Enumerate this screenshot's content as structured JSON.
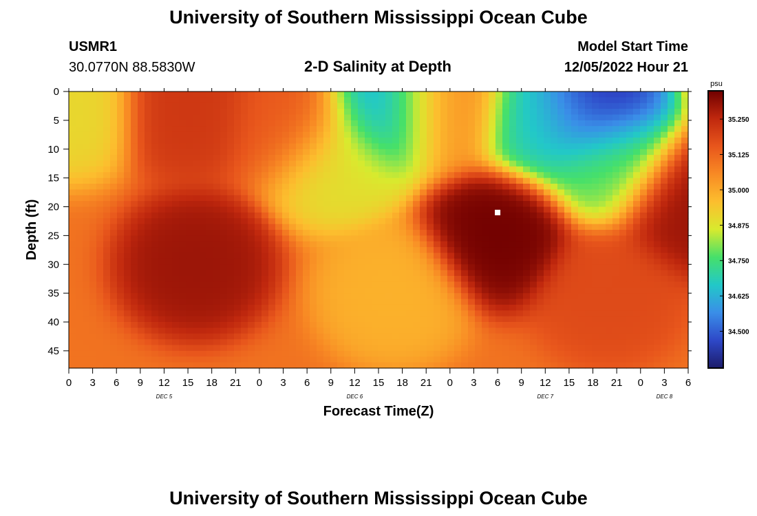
{
  "header": {
    "title": "University of Southern Mississippi Ocean Cube",
    "station_id": "USMR1",
    "station_coords": "30.0770N  88.5830W",
    "plot_title": "2-D Salinity at Depth",
    "model_start_label": "Model Start Time",
    "model_start_value": "12/05/2022 Hour 21",
    "footer_title": "University of Southern Mississippi Ocean Cube"
  },
  "colorbar": {
    "unit": "psu",
    "min": 34.37,
    "max": 35.35,
    "ticks": [
      "35.250",
      "35.125",
      "35.000",
      "34.875",
      "34.750",
      "34.625",
      "34.500"
    ],
    "tick_values": [
      35.25,
      35.125,
      35.0,
      34.875,
      34.75,
      34.625,
      34.5
    ],
    "colors": [
      "#1c1c6a",
      "#2e48c8",
      "#3a8ee8",
      "#22c8c8",
      "#46e06a",
      "#d8ea2e",
      "#fcbe2e",
      "#f88a24",
      "#e8561c",
      "#c0280e",
      "#700000"
    ]
  },
  "chart_data": {
    "type": "heatmap",
    "title": "2-D Salinity at Depth",
    "xlabel": "Forecast Time(Z)",
    "ylabel": "Depth (ft)",
    "ylim": [
      0,
      48
    ],
    "xlim_hours": [
      0,
      78
    ],
    "x_tick_labels": [
      "0",
      "3",
      "6",
      "9",
      "12",
      "15",
      "18",
      "21",
      "0",
      "3",
      "6",
      "9",
      "12",
      "15",
      "18",
      "21",
      "0",
      "3",
      "6",
      "9",
      "12",
      "15",
      "18",
      "21",
      "0",
      "3",
      "6"
    ],
    "y_tick_labels": [
      "0",
      "5",
      "10",
      "15",
      "20",
      "25",
      "30",
      "35",
      "40",
      "45"
    ],
    "y_tick_values": [
      0,
      5,
      10,
      15,
      20,
      25,
      30,
      35,
      40,
      45
    ],
    "day_labels": [
      {
        "label": "DEC 5",
        "hour": 12
      },
      {
        "label": "DEC 6",
        "hour": 36
      },
      {
        "label": "DEC 7",
        "hour": 60
      },
      {
        "label": "DEC 8",
        "hour": 75
      }
    ],
    "value_unit": "psu",
    "marker": {
      "hour": 54,
      "depth_ft": 21
    },
    "base_salinity": 35.1,
    "features": [
      {
        "hour": 0,
        "depth_ft": 3,
        "value": 34.9
      },
      {
        "hour": 15,
        "depth_ft": 3,
        "value": 35.22
      },
      {
        "hour": 16,
        "depth_ft": 30,
        "value": 35.3
      },
      {
        "hour": 28,
        "depth_ft": 5,
        "value": 35.15
      },
      {
        "hour": 34,
        "depth_ft": 12,
        "value": 34.88
      },
      {
        "hour": 40,
        "depth_ft": 3,
        "value": 34.6
      },
      {
        "hour": 41,
        "depth_ft": 35,
        "value": 34.98
      },
      {
        "hour": 47,
        "depth_ft": 3,
        "value": 35.05
      },
      {
        "hour": 54,
        "depth_ft": 25,
        "value": 35.35
      },
      {
        "hour": 60,
        "depth_ft": 5,
        "value": 34.68
      },
      {
        "hour": 66,
        "depth_ft": 3,
        "value": 34.4
      },
      {
        "hour": 68,
        "depth_ft": 12,
        "value": 34.78
      },
      {
        "hour": 68,
        "depth_ft": 35,
        "value": 35.18
      },
      {
        "hour": 78,
        "depth_ft": 20,
        "value": 35.3
      }
    ]
  }
}
